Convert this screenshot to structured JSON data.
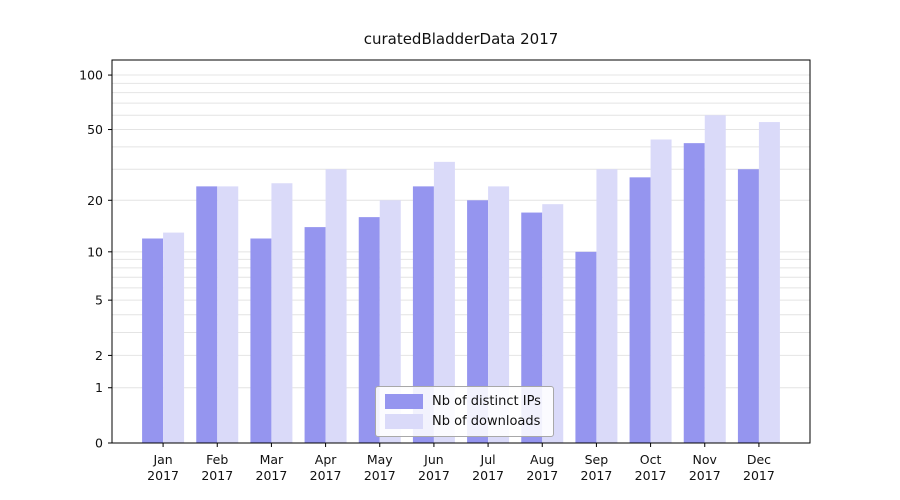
{
  "title": "curatedBladderData 2017",
  "chart_data": {
    "type": "bar",
    "scale": "log1p",
    "title": "curatedBladderData 2017",
    "xlabel": "",
    "ylabel": "",
    "months": [
      "Jan",
      "Feb",
      "Mar",
      "Apr",
      "May",
      "Jun",
      "Jul",
      "Aug",
      "Sep",
      "Oct",
      "Nov",
      "Dec"
    ],
    "year_label": "2017",
    "categories": [
      "Jan 2017",
      "Feb 2017",
      "Mar 2017",
      "Apr 2017",
      "May 2017",
      "Jun 2017",
      "Jul 2017",
      "Aug 2017",
      "Sep 2017",
      "Oct 2017",
      "Nov 2017",
      "Dec 2017"
    ],
    "series": [
      {
        "name": "Nb of distinct IPs",
        "color": "#9595ef",
        "values": [
          12,
          24,
          12,
          14,
          16,
          24,
          20,
          17,
          10,
          27,
          42,
          30
        ]
      },
      {
        "name": "Nb of downloads",
        "color": "#dadaf9",
        "values": [
          13,
          24,
          25,
          30,
          20,
          33,
          24,
          19,
          30,
          44,
          60,
          55
        ]
      }
    ],
    "y_ticks": [
      0,
      1,
      2,
      5,
      10,
      20,
      50,
      100
    ],
    "grid_values": [
      1,
      2,
      3,
      4,
      5,
      6,
      7,
      8,
      9,
      10,
      20,
      30,
      40,
      50,
      60,
      70,
      80,
      90,
      100
    ],
    "y_max": 121,
    "legend_position": "bottom-center",
    "grid": "on",
    "colors": {
      "axis": "#000000",
      "gridline": "#e4e4e4",
      "text": "#111111",
      "background": "#ffffff"
    }
  },
  "legend": {
    "item1": "Nb of distinct IPs",
    "item2": "Nb of downloads"
  }
}
